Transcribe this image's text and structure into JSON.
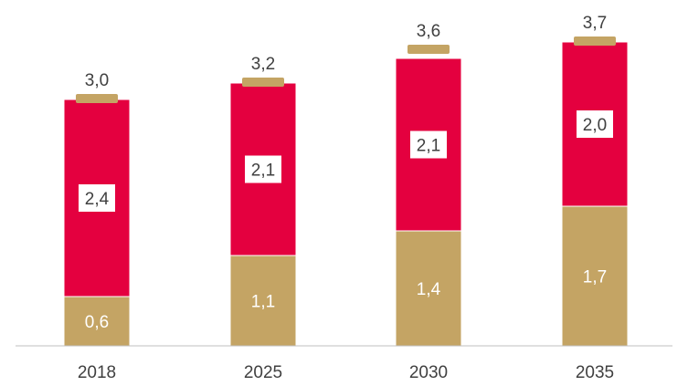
{
  "chart_data": {
    "type": "bar",
    "stacked": true,
    "categories": [
      "2018",
      "2025",
      "2030",
      "2035"
    ],
    "series": [
      {
        "values": [
          0.6,
          1.1,
          1.4,
          1.7
        ],
        "labels": [
          "0,6",
          "1,1",
          "1,4",
          "1,7"
        ],
        "color": "#c4a464",
        "label_style": "light"
      },
      {
        "values": [
          2.4,
          2.1,
          2.1,
          2.0
        ],
        "labels": [
          "2,4",
          "2,1",
          "2,1",
          "2,0"
        ],
        "color": "#e4003f",
        "label_style": "boxed"
      }
    ],
    "totals": [
      3.0,
      3.2,
      3.6,
      3.7
    ],
    "total_labels": [
      "3,0",
      "3,2",
      "3,6",
      "3,7"
    ],
    "total_marker_color": "#c4a464",
    "ylim": [
      0,
      3.7
    ],
    "grid": false,
    "legend": "none",
    "title": "",
    "xlabel": "",
    "ylabel": ""
  }
}
